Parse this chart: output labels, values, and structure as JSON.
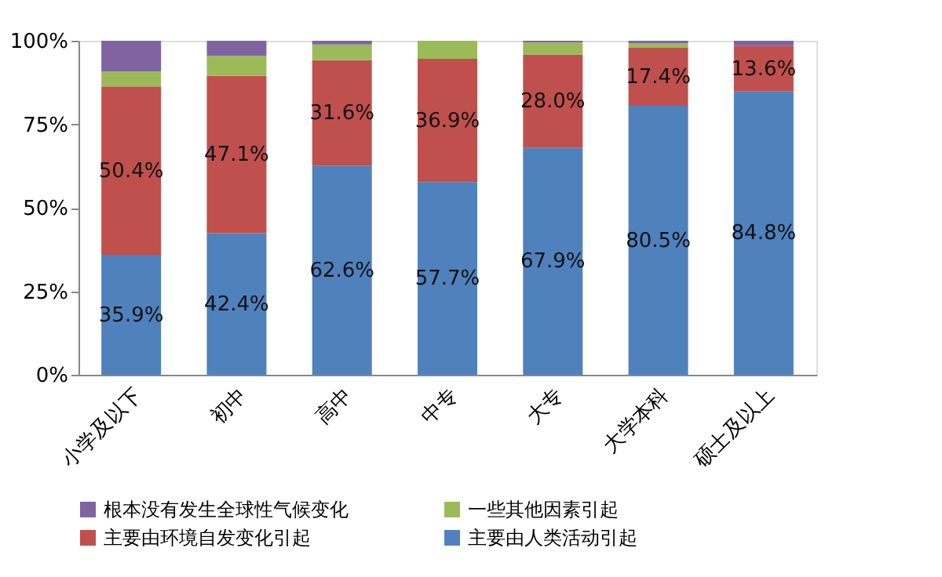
{
  "chart_data": {
    "type": "bar",
    "stacked": true,
    "categories": [
      "小学及以下",
      "初中",
      "高中",
      "中专",
      "大专",
      "大学本科",
      "硕士及以上"
    ],
    "series": [
      {
        "name": "主要由人类活动引起",
        "color": "#4f81bd",
        "values": [
          35.9,
          42.4,
          62.6,
          57.7,
          67.9,
          80.5,
          84.8
        ],
        "value_labels": [
          "35.9%",
          "42.4%",
          "62.6%",
          "57.7%",
          "67.9%",
          "80.5%",
          "84.8%"
        ]
      },
      {
        "name": "主要由环境自发变化引起",
        "color": "#c0504d",
        "values": [
          50.4,
          47.1,
          31.6,
          36.9,
          28.0,
          17.4,
          13.6
        ],
        "value_labels": [
          "50.4%",
          "47.1%",
          "31.6%",
          "36.9%",
          "28.0%",
          "17.4%",
          "13.6%"
        ]
      },
      {
        "name": "一些其他因素引起",
        "color": "#9bbb59",
        "values": [
          4.5,
          6.0,
          4.7,
          5.4,
          3.6,
          1.4,
          0
        ]
      },
      {
        "name": "根本没有发生全球性气候变化",
        "color": "#8064a2",
        "values": [
          9.2,
          4.5,
          1.1,
          0,
          0.5,
          0.7,
          1.6
        ]
      }
    ],
    "ylim": [
      0,
      100
    ],
    "yticks": [
      {
        "value": 0,
        "label": "0%"
      },
      {
        "value": 25,
        "label": "25%"
      },
      {
        "value": 50,
        "label": "50%"
      },
      {
        "value": 75,
        "label": "75%"
      },
      {
        "value": 100,
        "label": "100%"
      }
    ],
    "grid": false,
    "legend": "bottom"
  }
}
